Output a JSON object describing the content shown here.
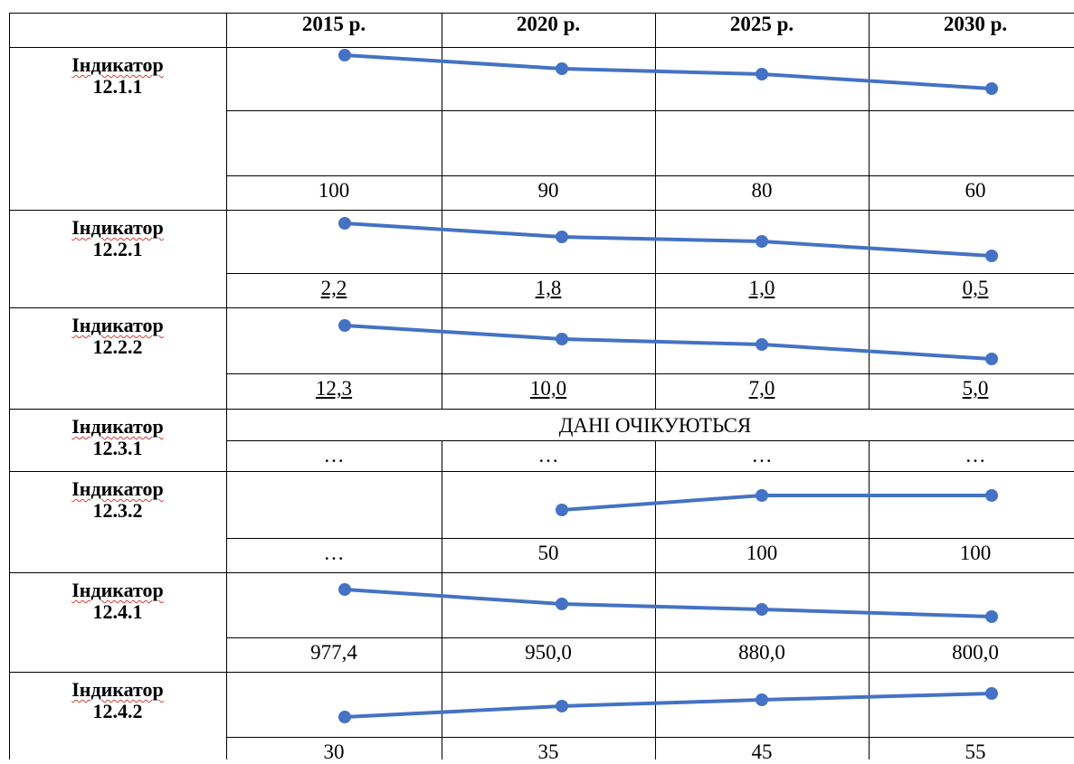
{
  "years": [
    "2015 р.",
    "2020 р.",
    "2025 р.",
    "2030 р."
  ],
  "indicators": [
    {
      "name": "Індикатор",
      "code": "12.1.1",
      "values": [
        "100",
        "90",
        "80",
        "60"
      ],
      "chart_data": {
        "type": "line",
        "x": [
          "2015",
          "2020",
          "2025",
          "2030"
        ],
        "y": [
          100,
          90,
          80,
          60
        ]
      }
    },
    {
      "name": "Індикатор",
      "code": "12.2.1",
      "values": [
        "2,2",
        "1,8",
        "1,0",
        "0,5"
      ],
      "chart_data": {
        "type": "line",
        "x": [
          "2015",
          "2020",
          "2025",
          "2030"
        ],
        "y": [
          2.2,
          1.8,
          1.0,
          0.5
        ]
      }
    },
    {
      "name": "Індикатор",
      "code": "12.2.2",
      "values": [
        "12,3",
        "10,0",
        "7,0",
        "5,0"
      ],
      "chart_data": {
        "type": "line",
        "x": [
          "2015",
          "2020",
          "2025",
          "2030"
        ],
        "y": [
          12.3,
          10.0,
          7.0,
          5.0
        ]
      }
    },
    {
      "name": "Індикатор",
      "code": "12.3.1",
      "note": "ДАНІ ОЧІКУЮТЬСЯ",
      "values": [
        "…",
        "…",
        "…",
        "…"
      ]
    },
    {
      "name": "Індикатор",
      "code": "12.3.2",
      "values": [
        "…",
        "50",
        "100",
        "100"
      ],
      "chart_data": {
        "type": "line",
        "x": [
          "2020",
          "2025",
          "2030"
        ],
        "y": [
          50,
          100,
          100
        ]
      }
    },
    {
      "name": "Індикатор",
      "code": "12.4.1",
      "values": [
        "977,4",
        "950,0",
        "880,0",
        "800,0"
      ],
      "chart_data": {
        "type": "line",
        "x": [
          "2015",
          "2020",
          "2025",
          "2030"
        ],
        "y": [
          977.4,
          950.0,
          880.0,
          800.0
        ]
      }
    },
    {
      "name": "Індикатор",
      "code": "12.4.2",
      "values": [
        "30",
        "35",
        "45",
        "55"
      ],
      "chart_data": {
        "type": "line",
        "x": [
          "2015",
          "2020",
          "2025",
          "2030"
        ],
        "y": [
          30,
          35,
          45,
          55
        ]
      }
    }
  ],
  "colors": {
    "line": "#4472c4",
    "spellcheck": "#d63a3a",
    "border": "#000000"
  }
}
